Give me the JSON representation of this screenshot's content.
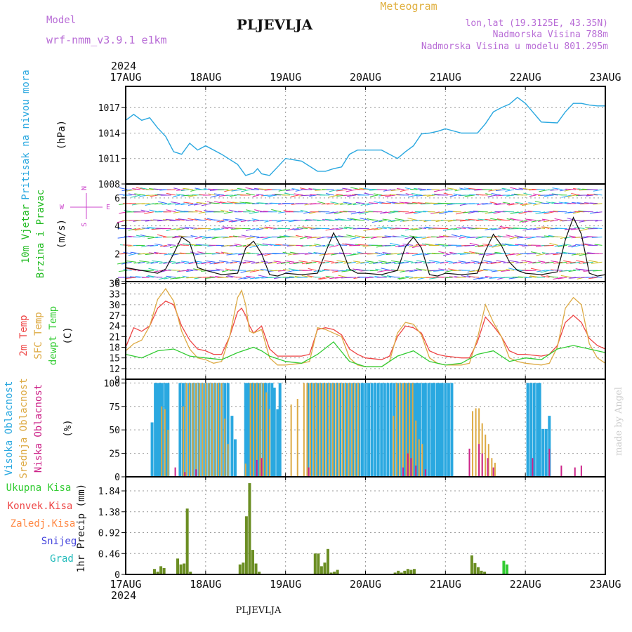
{
  "header": {
    "model_label": "Model",
    "model_name": "wrf-nmm_v3.9.1  e1km",
    "station": "PLJEVLJA",
    "meteogram": "Meteogram",
    "lonlat": "lon,lat (19.3125E, 43.35N)",
    "altitude": "Nadmorska Visina 788m",
    "altitude_model": "Nadmorska Visina u modelu 801.295m",
    "year_top": "2024",
    "year_bottom": "2024",
    "footer_station": "PLJEVLJA",
    "credit": "made by Angel"
  },
  "colors": {
    "pressure": "#2aa8e0",
    "wind_label": "#22bb22",
    "wind_dir": "#cc44cc",
    "temp2m": "#ee4444",
    "sfc": "#ddaa44",
    "dew": "#33cc33",
    "high_cloud": "#2aa8e0",
    "mid_cloud": "#ddaa44",
    "low_cloud": "#cc2288",
    "total": "#33cc33",
    "conv": "#ee4444",
    "frozen": "#ff8844",
    "snow": "#4444dd",
    "grad": "#22bbbb",
    "precip_bar": "#6b8e23"
  },
  "chart_data": [
    {
      "id": "pressure",
      "type": "line",
      "ylabel": [
        "Pritisak na nivou mora",
        "(hPa)"
      ],
      "ylim": [
        1008,
        1019.5
      ],
      "yticks": [
        1008,
        1011,
        1014,
        1017
      ],
      "x_days": [
        "17AUG",
        "18AUG",
        "19AUG",
        "20AUG",
        "21AUG",
        "22AUG",
        "23AUG"
      ],
      "series": [
        {
          "x": [
            0,
            0.1,
            0.2,
            0.3,
            0.4,
            0.5,
            0.6,
            0.7,
            0.8,
            0.9,
            1.0,
            1.2,
            1.4,
            1.5,
            1.6,
            1.65,
            1.7,
            1.8,
            1.9,
            2.0,
            2.2,
            2.4,
            2.5,
            2.6,
            2.7,
            2.8,
            2.9,
            3.0,
            3.2,
            3.4,
            3.5,
            3.6,
            3.7,
            3.8,
            3.9,
            4.0,
            4.2,
            4.4,
            4.5,
            4.6,
            4.7,
            4.8,
            4.9,
            5.0,
            5.2,
            5.4,
            5.5,
            5.6,
            5.7,
            5.8,
            5.9,
            6.0
          ],
          "y": [
            1015.5,
            1016.2,
            1015.5,
            1015.8,
            1014.6,
            1013.6,
            1011.8,
            1011.5,
            1012.8,
            1012.0,
            1012.5,
            1011.5,
            1010.3,
            1009.0,
            1009.3,
            1009.8,
            1009.2,
            1009.0,
            1010.0,
            1011.0,
            1010.7,
            1009.5,
            1009.5,
            1009.8,
            1010.0,
            1011.5,
            1012.0,
            1012.0,
            1012.0,
            1011.0,
            1011.8,
            1012.5,
            1013.9,
            1014.0,
            1014.2,
            1014.5,
            1014.0,
            1014.0,
            1015.1,
            1016.5,
            1017.0,
            1017.4,
            1018.2,
            1017.5,
            1015.3,
            1015.2,
            1016.5,
            1017.5,
            1017.5,
            1017.3,
            1017.2,
            1017.2
          ]
        }
      ]
    },
    {
      "id": "wind",
      "type": "line",
      "ylabel": [
        "10m Vjetar",
        "Brzina i Pravac",
        "(m/s)"
      ],
      "dir_legend": [
        "N",
        "E",
        "W",
        "S"
      ],
      "ylim": [
        0,
        7
      ],
      "yticks": [
        0,
        2,
        4,
        6
      ],
      "speed": {
        "x": [
          0,
          0.2,
          0.4,
          0.5,
          0.6,
          0.7,
          0.8,
          0.9,
          1.0,
          1.2,
          1.4,
          1.5,
          1.6,
          1.7,
          1.8,
          1.9,
          2.0,
          2.2,
          2.4,
          2.5,
          2.6,
          2.7,
          2.8,
          2.9,
          3.0,
          3.2,
          3.4,
          3.5,
          3.6,
          3.7,
          3.8,
          3.9,
          4.0,
          4.2,
          4.4,
          4.5,
          4.6,
          4.7,
          4.8,
          4.9,
          5.0,
          5.2,
          5.4,
          5.5,
          5.6,
          5.7,
          5.8,
          5.9,
          6.0
        ],
        "y": [
          1.0,
          0.8,
          0.6,
          0.9,
          2.0,
          3.2,
          2.8,
          1.0,
          0.8,
          0.5,
          0.6,
          2.4,
          2.9,
          2.0,
          0.5,
          0.4,
          0.6,
          0.5,
          0.6,
          2.1,
          3.5,
          2.4,
          0.9,
          0.6,
          0.6,
          0.5,
          0.8,
          2.5,
          3.2,
          2.4,
          0.5,
          0.4,
          0.6,
          0.5,
          0.6,
          2.2,
          3.4,
          2.6,
          1.4,
          0.8,
          0.6,
          0.5,
          0.7,
          3.0,
          4.6,
          3.4,
          0.6,
          0.4,
          0.5
        ]
      }
    },
    {
      "id": "temperature",
      "type": "line",
      "ylabel": [
        "2m Temp",
        "SFC Temp",
        "dewpt Temp",
        "(C)"
      ],
      "ylim": [
        9,
        36.5
      ],
      "yticks": [
        9,
        12,
        15,
        18,
        21,
        24,
        27,
        30,
        33,
        36
      ],
      "series": [
        {
          "name": "2m Temp",
          "x": [
            0,
            0.1,
            0.2,
            0.3,
            0.4,
            0.5,
            0.6,
            0.7,
            0.8,
            0.9,
            1.0,
            1.1,
            1.2,
            1.3,
            1.4,
            1.45,
            1.5,
            1.55,
            1.6,
            1.7,
            1.8,
            1.9,
            2.0,
            2.2,
            2.3,
            2.4,
            2.5,
            2.6,
            2.7,
            2.8,
            2.9,
            3.0,
            3.2,
            3.3,
            3.4,
            3.5,
            3.6,
            3.7,
            3.8,
            3.9,
            4.0,
            4.2,
            4.3,
            4.4,
            4.5,
            4.6,
            4.7,
            4.8,
            4.9,
            5.0,
            5.2,
            5.3,
            5.4,
            5.5,
            5.6,
            5.7,
            5.8,
            5.9,
            6.0
          ],
          "y": [
            18,
            23.5,
            22.5,
            24,
            29,
            31,
            30,
            24,
            20,
            17.5,
            17,
            16,
            16,
            21,
            28,
            29,
            27,
            24,
            22,
            24,
            17.5,
            15.5,
            15.5,
            15.5,
            16,
            23,
            23.5,
            23,
            21.5,
            17.5,
            16,
            15,
            14.5,
            15.5,
            21,
            24,
            23.5,
            22,
            17,
            16,
            15.5,
            15,
            15,
            19.5,
            26.5,
            24,
            21,
            17,
            16,
            16,
            15.5,
            16,
            18.5,
            25,
            27,
            25,
            20.5,
            18.5,
            17.5
          ]
        },
        {
          "name": "SFC Temp",
          "x": [
            0,
            0.1,
            0.2,
            0.3,
            0.4,
            0.5,
            0.6,
            0.7,
            0.8,
            0.9,
            1.0,
            1.1,
            1.2,
            1.3,
            1.4,
            1.45,
            1.5,
            1.55,
            1.6,
            1.7,
            1.8,
            1.9,
            2.0,
            2.2,
            2.3,
            2.4,
            2.5,
            2.6,
            2.7,
            2.8,
            2.9,
            3.0,
            3.2,
            3.3,
            3.4,
            3.5,
            3.6,
            3.7,
            3.8,
            3.9,
            4.0,
            4.2,
            4.3,
            4.4,
            4.5,
            4.6,
            4.7,
            4.8,
            4.9,
            5.0,
            5.2,
            5.3,
            5.4,
            5.5,
            5.6,
            5.7,
            5.8,
            5.9,
            6.0
          ],
          "y": [
            17,
            19,
            20,
            24,
            31.5,
            34.5,
            31,
            22.5,
            17.5,
            15,
            14.5,
            13.5,
            14,
            21,
            32,
            34,
            30,
            22.5,
            22,
            23,
            15,
            13,
            13,
            13.5,
            14,
            23.5,
            23,
            22,
            21,
            15,
            13,
            12.5,
            12.5,
            14,
            22,
            25,
            24.5,
            21.5,
            15,
            13.5,
            13,
            13,
            13.5,
            20.5,
            30,
            25,
            21,
            15,
            14,
            13.5,
            13,
            13.5,
            18,
            29,
            32,
            30,
            19,
            15,
            13.5
          ]
        },
        {
          "name": "dewpt Temp",
          "x": [
            0,
            0.2,
            0.4,
            0.6,
            0.8,
            1.0,
            1.2,
            1.4,
            1.6,
            1.7,
            1.8,
            2.0,
            2.2,
            2.4,
            2.6,
            2.8,
            3.0,
            3.2,
            3.4,
            3.6,
            3.8,
            4.0,
            4.2,
            4.4,
            4.6,
            4.8,
            5.0,
            5.2,
            5.4,
            5.6,
            5.8,
            6.0
          ],
          "y": [
            16,
            15,
            17,
            17.5,
            15.5,
            15,
            14.5,
            16.5,
            18,
            17,
            15.5,
            14,
            13.5,
            16,
            19.5,
            14,
            12.5,
            12.5,
            15.5,
            17,
            14,
            13,
            13.5,
            16,
            17,
            14,
            15,
            14.5,
            17.5,
            18.5,
            17.5,
            16.5
          ]
        }
      ]
    },
    {
      "id": "clouds",
      "type": "bar",
      "ylabel": [
        "Visoka Oblacnost",
        "Srednja Oblacnost",
        "Niska Oblacnost",
        "(%)"
      ],
      "ylim": [
        0,
        104
      ],
      "yticks": [
        0,
        25,
        50,
        75,
        100
      ],
      "series": [
        {
          "name": "Visoka Oblacnost",
          "x": [
            0.33,
            0.37,
            0.4,
            0.43,
            0.46,
            0.5,
            0.53,
            0.68,
            0.72,
            0.76,
            0.8,
            0.84,
            0.88,
            0.92,
            0.96,
            1.0,
            1.04,
            1.08,
            1.12,
            1.16,
            1.2,
            1.24,
            1.28,
            1.33,
            1.37,
            1.5,
            1.53,
            1.56,
            1.59,
            1.62,
            1.65,
            1.68,
            1.72,
            1.75,
            1.79,
            1.83,
            1.86,
            1.9,
            1.93,
            2.28,
            2.32,
            2.36,
            2.4,
            2.44,
            2.48,
            2.52,
            2.56,
            2.6,
            2.64,
            2.68,
            2.72,
            2.76,
            2.8,
            2.84,
            2.88,
            2.92,
            2.96,
            3.0,
            3.04,
            3.08,
            3.12,
            3.16,
            3.2,
            3.24,
            3.28,
            3.32,
            3.36,
            3.4,
            3.44,
            3.48,
            3.5,
            3.53,
            3.56,
            3.59,
            3.62,
            3.65,
            3.68,
            3.72,
            3.75,
            3.79,
            3.83,
            3.86,
            3.9,
            3.93,
            3.96,
            4.0,
            4.04,
            4.08,
            5.03,
            5.07,
            5.11,
            5.15,
            5.18,
            5.22,
            5.26,
            5.3
          ],
          "v": [
            58,
            100,
            100,
            100,
            100,
            100,
            100,
            100,
            100,
            100,
            100,
            100,
            100,
            100,
            100,
            100,
            100,
            100,
            100,
            100,
            100,
            100,
            100,
            65,
            40,
            100,
            100,
            100,
            100,
            100,
            100,
            100,
            100,
            100,
            100,
            100,
            95,
            72,
            100,
            100,
            100,
            100,
            100,
            100,
            100,
            100,
            100,
            100,
            100,
            100,
            100,
            100,
            100,
            100,
            100,
            100,
            100,
            100,
            100,
            100,
            100,
            100,
            100,
            100,
            100,
            100,
            100,
            100,
            100,
            100,
            100,
            100,
            100,
            100,
            100,
            100,
            100,
            100,
            100,
            100,
            100,
            100,
            100,
            100,
            100,
            100,
            100,
            100,
            100,
            100,
            100,
            100,
            100,
            51,
            51,
            65
          ]
        },
        {
          "name": "Srednja Oblacnost",
          "x": [
            0.45,
            0.49,
            0.53,
            0.72,
            0.76,
            0.8,
            0.84,
            0.88,
            0.92,
            0.96,
            1.0,
            1.04,
            1.08,
            1.12,
            1.16,
            1.2,
            1.24,
            1.28,
            1.5,
            1.56,
            1.6,
            1.64,
            1.68,
            1.72,
            1.76,
            1.8,
            2.07,
            2.15,
            2.23,
            2.27,
            2.31,
            2.35,
            2.39,
            2.43,
            2.47,
            2.51,
            2.55,
            2.59,
            2.63,
            2.67,
            2.71,
            2.75,
            2.79,
            2.83,
            2.87,
            2.91,
            3.35,
            3.39,
            3.43,
            3.47,
            3.51,
            3.55,
            3.59,
            3.63,
            3.67,
            3.71,
            4.34,
            4.38,
            4.42,
            4.46,
            4.5,
            4.54,
            4.58,
            4.62
          ],
          "v": [
            75,
            72,
            50,
            75,
            100,
            100,
            100,
            100,
            100,
            100,
            100,
            100,
            100,
            100,
            100,
            100,
            62,
            35,
            14,
            100,
            100,
            100,
            100,
            100,
            90,
            72,
            77,
            83,
            100,
            100,
            100,
            100,
            100,
            100,
            100,
            100,
            100,
            100,
            100,
            100,
            100,
            100,
            100,
            100,
            100,
            100,
            65,
            100,
            100,
            100,
            100,
            100,
            100,
            60,
            40,
            35,
            70,
            73,
            73,
            57,
            45,
            35,
            20,
            15
          ]
        },
        {
          "name": "Niska Oblacnost",
          "x": [
            0.62,
            0.74,
            0.88,
            1.64,
            1.7,
            2.29,
            3.47,
            3.53,
            3.57,
            3.63,
            3.75,
            4.3,
            4.42,
            4.46,
            4.53,
            4.6,
            5.09,
            5.3,
            5.45,
            5.62,
            5.7
          ],
          "v": [
            10,
            5,
            8,
            18,
            20,
            10,
            10,
            25,
            20,
            12,
            8,
            30,
            35,
            25,
            20,
            10,
            20,
            30,
            12,
            10,
            12
          ]
        }
      ]
    },
    {
      "id": "precip",
      "type": "bar",
      "ylabel": [
        "1hr Precip (mm)"
      ],
      "legend": [
        "Ukupna Kisa",
        "Konvek.Kisa",
        "Zaledj.Kisa",
        "Snijeg",
        "Grad"
      ],
      "ylim": [
        0,
        2.15
      ],
      "yticks": [
        0,
        0.46,
        0.92,
        1.38,
        1.84
      ],
      "ytick_labels": [
        "0",
        "0.46",
        "0.92",
        "1.38",
        "1.84"
      ],
      "series": [
        {
          "name": "Ukupna Kisa",
          "x": [
            0.36,
            0.4,
            0.44,
            0.48,
            0.65,
            0.69,
            0.73,
            0.77,
            0.81,
            1.43,
            1.47,
            1.51,
            1.55,
            1.59,
            1.63,
            1.67,
            2.37,
            2.41,
            2.45,
            2.49,
            2.53,
            2.57,
            2.61,
            2.65,
            3.37,
            3.41,
            3.45,
            3.49,
            3.53,
            3.57,
            3.61,
            4.33,
            4.37,
            4.41,
            4.45,
            4.49,
            4.73,
            4.77
          ],
          "v": [
            0.12,
            0.06,
            0.18,
            0.14,
            0.35,
            0.22,
            0.24,
            1.45,
            0.06,
            0.22,
            0.26,
            1.28,
            2.01,
            0.54,
            0.24,
            0.06,
            0.46,
            0.46,
            0.18,
            0.26,
            0.56,
            0.04,
            0.06,
            0.1,
            0.04,
            0.08,
            0.04,
            0.08,
            0.12,
            0.1,
            0.12,
            0.42,
            0.25,
            0.16,
            0.08,
            0.06,
            0.3,
            0.22
          ]
        }
      ]
    }
  ]
}
